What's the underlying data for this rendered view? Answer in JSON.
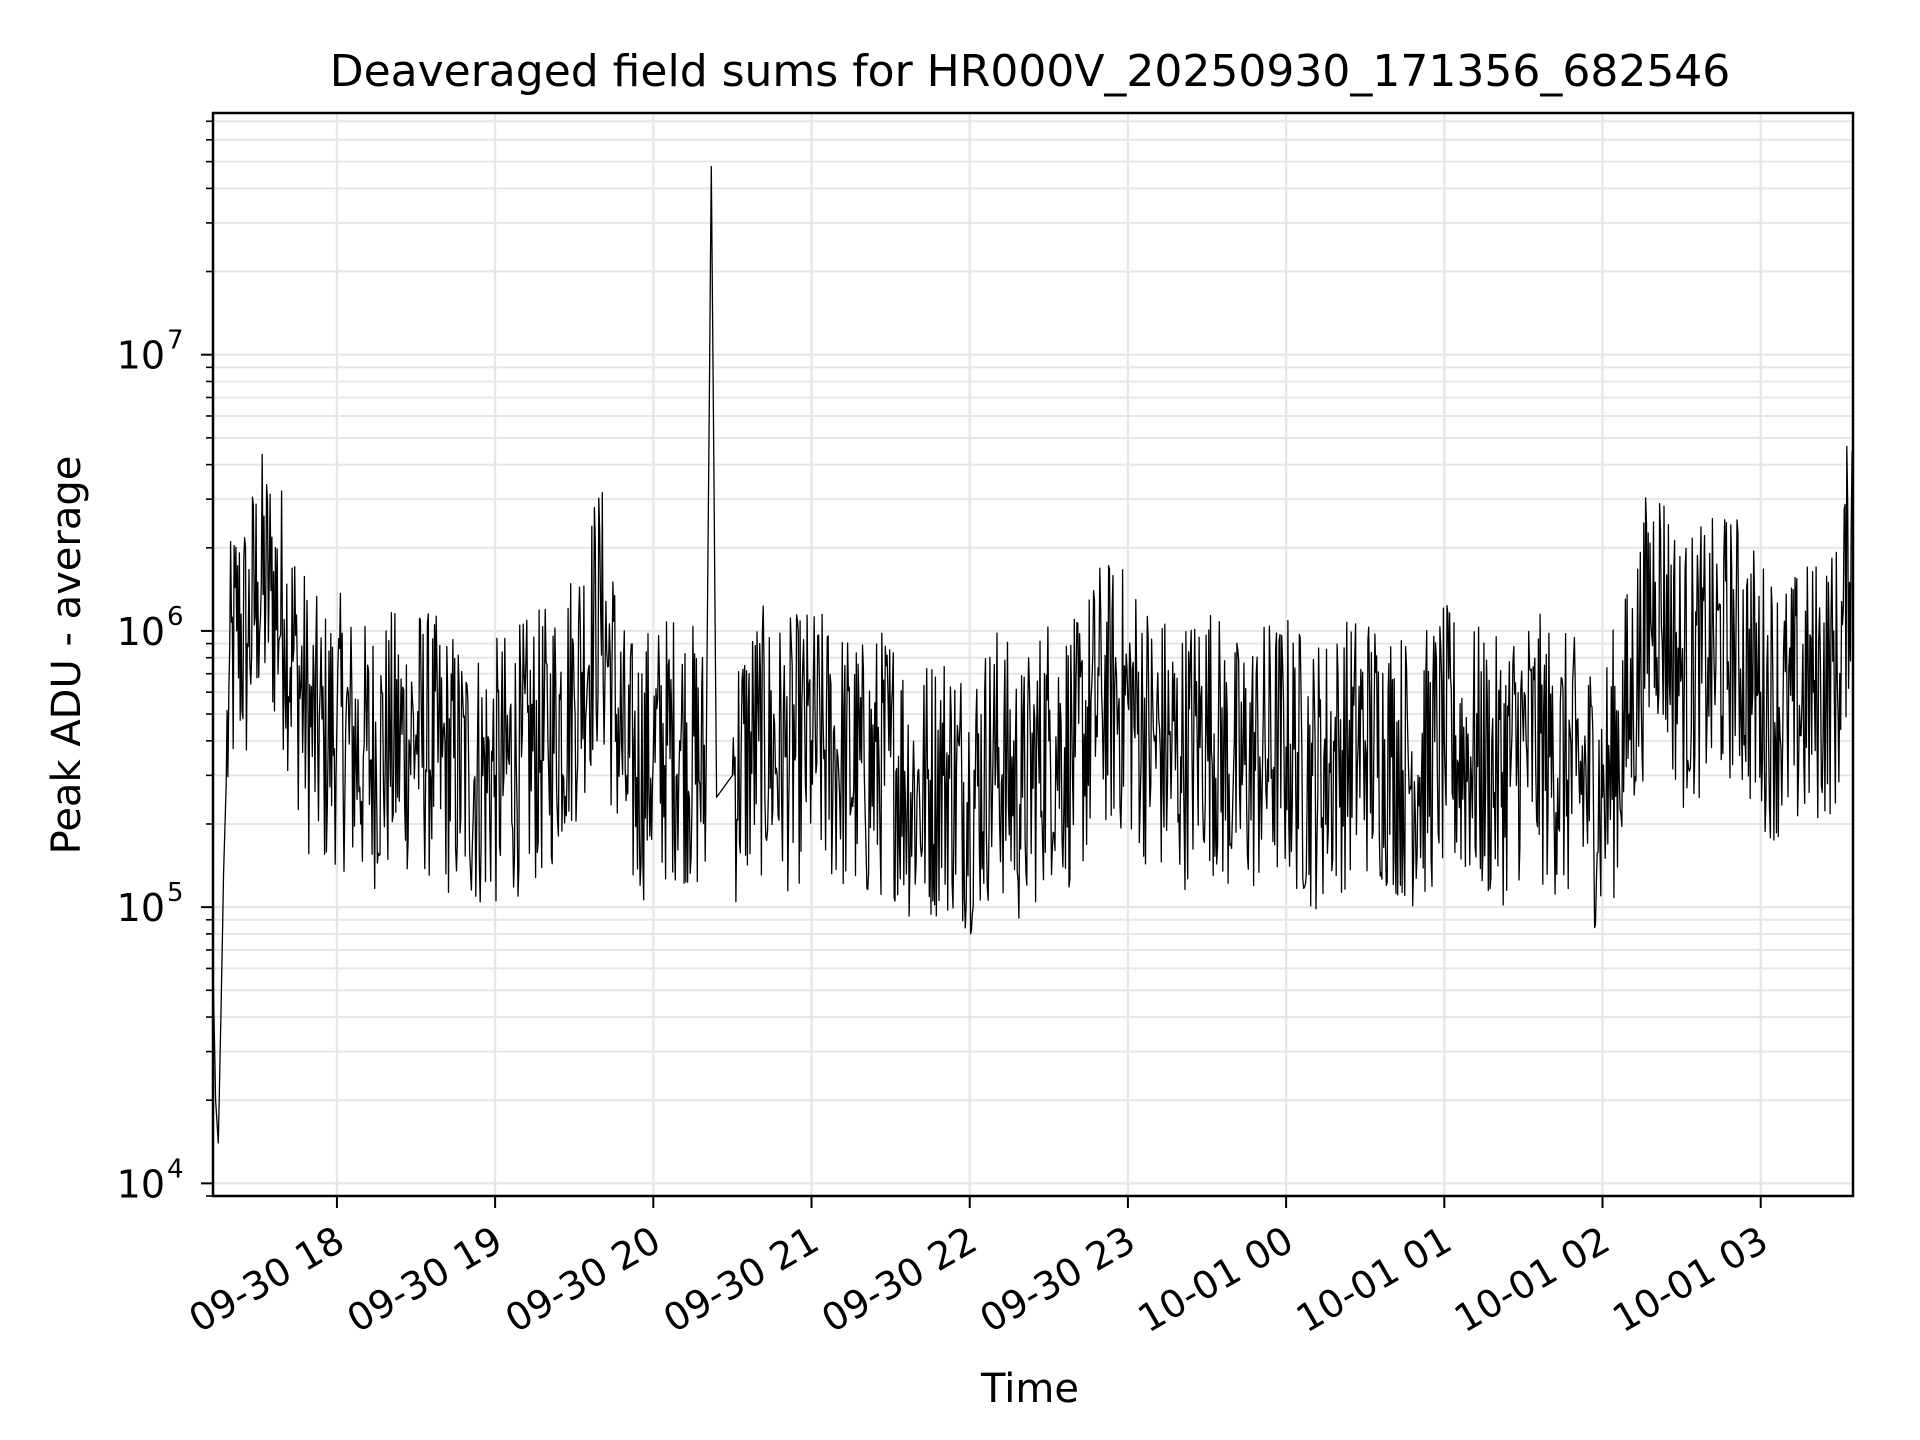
{
  "chart_data": {
    "type": "line",
    "title": "Deaveraged field sums for HR000V_20250930_171356_682546",
    "xlabel": "Time",
    "ylabel": "Peak ADU - average",
    "yscale": "log",
    "ylim": [
      9000,
      75000000
    ],
    "xlim": [
      "2025-09-30 17:13",
      "2025-10-01 03:35"
    ],
    "grid": true,
    "line_color": "#000000",
    "x_ticks": [
      {
        "value": "2025-09-30 18:00",
        "label": "09-30 18"
      },
      {
        "value": "2025-09-30 19:00",
        "label": "09-30 19"
      },
      {
        "value": "2025-09-30 20:00",
        "label": "09-30 20"
      },
      {
        "value": "2025-09-30 21:00",
        "label": "09-30 21"
      },
      {
        "value": "2025-09-30 22:00",
        "label": "09-30 22"
      },
      {
        "value": "2025-09-30 23:00",
        "label": "09-30 23"
      },
      {
        "value": "2025-10-01 00:00",
        "label": "10-01 00"
      },
      {
        "value": "2025-10-01 01:00",
        "label": "10-01 01"
      },
      {
        "value": "2025-10-01 02:00",
        "label": "10-01 02"
      },
      {
        "value": "2025-10-01 03:00",
        "label": "10-01 03"
      }
    ],
    "y_ticks": [
      {
        "value": 10000,
        "base": "10",
        "exp": "4"
      },
      {
        "value": 100000,
        "base": "10",
        "exp": "5"
      },
      {
        "value": 1000000,
        "base": "10",
        "exp": "6"
      },
      {
        "value": 10000000,
        "base": "10",
        "exp": "7"
      }
    ],
    "series": [
      {
        "x": [
          "2025-09-30 17:13",
          "2025-09-30 17:14",
          "2025-09-30 17:15",
          "2025-09-30 17:16",
          "2025-09-30 17:17",
          "2025-09-30 17:19",
          "2025-09-30 17:22",
          "2025-09-30 17:26",
          "2025-09-30 17:30",
          "2025-09-30 17:35",
          "2025-09-30 17:40",
          "2025-09-30 17:45",
          "2025-09-30 17:50",
          "2025-09-30 17:55",
          "2025-09-30 18:00",
          "2025-09-30 18:10",
          "2025-09-30 18:20",
          "2025-09-30 18:30",
          "2025-09-30 18:40",
          "2025-09-30 18:50",
          "2025-09-30 19:00",
          "2025-09-30 19:10",
          "2025-09-30 19:20",
          "2025-09-30 19:30",
          "2025-09-30 19:40",
          "2025-09-30 19:50",
          "2025-09-30 20:00",
          "2025-09-30 20:10",
          "2025-09-30 20:20",
          "2025-09-30 20:22",
          "2025-09-30 20:24",
          "2025-09-30 20:30",
          "2025-09-30 20:40",
          "2025-09-30 20:50",
          "2025-09-30 21:00",
          "2025-09-30 21:10",
          "2025-09-30 21:20",
          "2025-09-30 21:30",
          "2025-09-30 21:40",
          "2025-09-30 21:50",
          "2025-09-30 22:00",
          "2025-09-30 22:10",
          "2025-09-30 22:20",
          "2025-09-30 22:30",
          "2025-09-30 22:40",
          "2025-09-30 22:50",
          "2025-09-30 23:00",
          "2025-09-30 23:10",
          "2025-09-30 23:20",
          "2025-09-30 23:30",
          "2025-09-30 23:40",
          "2025-09-30 23:50",
          "2025-10-01 00:00",
          "2025-10-01 00:10",
          "2025-10-01 00:20",
          "2025-10-01 00:30",
          "2025-10-01 00:40",
          "2025-10-01 00:50",
          "2025-10-01 01:00",
          "2025-10-01 01:10",
          "2025-10-01 01:20",
          "2025-10-01 01:30",
          "2025-10-01 01:40",
          "2025-10-01 01:50",
          "2025-10-01 02:00",
          "2025-10-01 02:10",
          "2025-10-01 02:20",
          "2025-10-01 02:30",
          "2025-10-01 02:40",
          "2025-10-01 02:50",
          "2025-10-01 03:00",
          "2025-10-01 03:10",
          "2025-10-01 03:20",
          "2025-10-01 03:30",
          "2025-10-01 03:35"
        ],
        "y": [
          60000,
          20000,
          14000,
          40000,
          130000,
          600000,
          1000000,
          900000,
          1500000,
          1400000,
          1100000,
          700000,
          450000,
          400000,
          450000,
          350000,
          380000,
          420000,
          350000,
          300000,
          300000,
          350000,
          400000,
          600000,
          1200000,
          300000,
          350000,
          400000,
          300000,
          48000000,
          250000,
          300000,
          400000,
          350000,
          400000,
          350000,
          300000,
          350000,
          250000,
          300000,
          250000,
          350000,
          250000,
          400000,
          350000,
          600000,
          550000,
          400000,
          350000,
          450000,
          300000,
          350000,
          380000,
          300000,
          350000,
          400000,
          350000,
          300000,
          400000,
          350000,
          300000,
          400000,
          350000,
          300000,
          250000,
          500000,
          1500000,
          700000,
          800000,
          900000,
          600000,
          500000,
          600000,
          700000,
          3000000
        ]
      }
    ]
  }
}
